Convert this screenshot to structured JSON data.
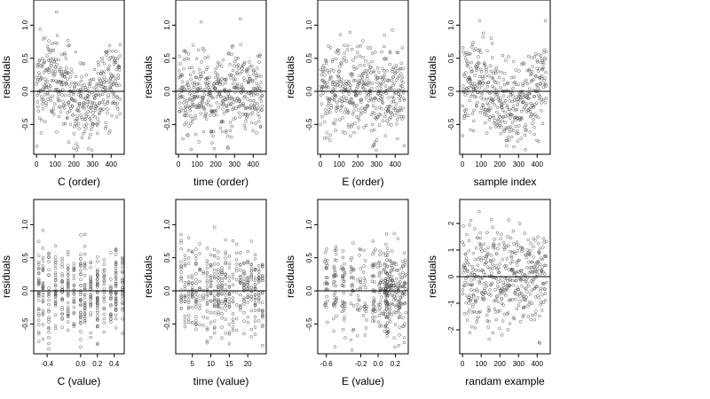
{
  "chart_data": [
    {
      "type": "scatter",
      "id": "c-order",
      "xlabel": "C (order)",
      "ylabel": "residuals",
      "xlim": [
        -15,
        470
      ],
      "ylim": [
        -0.95,
        1.38
      ],
      "xticks": [
        0,
        100,
        200,
        300,
        400
      ],
      "xtick_labels": [
        "0",
        "100",
        "200",
        "300",
        "400"
      ],
      "yticks": [
        -0.5,
        0.0,
        0.5,
        1.0
      ],
      "ytick_labels": [
        "-0.5",
        "0.0",
        "0.5",
        "1.0"
      ],
      "hline": 0,
      "n_points": 450,
      "x_kind": "index",
      "pattern": "wave"
    },
    {
      "type": "scatter",
      "id": "time-order",
      "xlabel": "time (order)",
      "ylabel": "residuals",
      "xlim": [
        -15,
        470
      ],
      "ylim": [
        -0.95,
        1.38
      ],
      "xticks": [
        0,
        100,
        200,
        300,
        400
      ],
      "xtick_labels": [
        "0",
        "100",
        "200",
        "300",
        "400"
      ],
      "yticks": [
        -0.5,
        0.0,
        0.5,
        1.0
      ],
      "ytick_labels": [
        "-0.5",
        "0.0",
        "0.5",
        "1.0"
      ],
      "hline": 0,
      "n_points": 450,
      "x_kind": "index",
      "pattern": "random"
    },
    {
      "type": "scatter",
      "id": "e-order",
      "xlabel": "E (order)",
      "ylabel": "residuals",
      "xlim": [
        -15,
        470
      ],
      "ylim": [
        -0.95,
        1.38
      ],
      "xticks": [
        0,
        100,
        200,
        300,
        400
      ],
      "xtick_labels": [
        "0",
        "100",
        "200",
        "300",
        "400"
      ],
      "yticks": [
        -0.5,
        0.0,
        0.5,
        1.0
      ],
      "ytick_labels": [
        "-0.5",
        "0.0",
        "0.5",
        "1.0"
      ],
      "hline": 0,
      "n_points": 450,
      "x_kind": "index",
      "pattern": "random"
    },
    {
      "type": "scatter",
      "id": "sample-index",
      "xlabel": "sample index",
      "ylabel": "residuals",
      "xlim": [
        -15,
        470
      ],
      "ylim": [
        -0.95,
        1.38
      ],
      "xticks": [
        0,
        100,
        200,
        300,
        400
      ],
      "xtick_labels": [
        "0",
        "100",
        "200",
        "300",
        "400"
      ],
      "yticks": [
        -0.5,
        0.0,
        0.5,
        1.0
      ],
      "ytick_labels": [
        "-0.5",
        "0.0",
        "0.5",
        "1.0"
      ],
      "hline": 0,
      "n_points": 450,
      "x_kind": "index",
      "pattern": "blocks"
    },
    {
      "type": "scatter",
      "id": "c-value",
      "xlabel": "C (value)",
      "ylabel": "residuals",
      "xlim": [
        -0.56,
        0.52
      ],
      "ylim": [
        -0.95,
        1.38
      ],
      "xticks": [
        -0.4,
        0.0,
        0.2,
        0.4
      ],
      "xtick_labels": [
        "-0.4",
        "0.0",
        "0.2",
        "0.4"
      ],
      "yticks": [
        -0.5,
        0.0,
        0.5,
        1.0
      ],
      "ytick_labels": [
        "-0.5",
        "0.0",
        "0.5",
        "1.0"
      ],
      "hline": 0,
      "n_points": 450,
      "x_kind": "discrete",
      "x_levels": [
        -0.5,
        -0.45,
        -0.38,
        -0.3,
        -0.22,
        -0.15,
        -0.08,
        0.0,
        0.05,
        0.12,
        0.2,
        0.28,
        0.36,
        0.42,
        0.5
      ],
      "pattern": "random"
    },
    {
      "type": "scatter",
      "id": "time-value",
      "xlabel": "time (value)",
      "ylabel": "residuals",
      "xlim": [
        0.5,
        25
      ],
      "ylim": [
        -0.95,
        1.38
      ],
      "xticks": [
        5,
        10,
        15,
        20
      ],
      "xtick_labels": [
        "5",
        "10",
        "15",
        "20"
      ],
      "yticks": [
        -0.5,
        0.0,
        0.5,
        1.0
      ],
      "ytick_labels": [
        "-0.5",
        "0.0",
        "0.5",
        "1.0"
      ],
      "hline": 0,
      "n_points": 450,
      "x_kind": "discrete",
      "x_levels": [
        2,
        3,
        4,
        5,
        6,
        7,
        8,
        9,
        10,
        11,
        12,
        13,
        14,
        15,
        16,
        17,
        18,
        19,
        20,
        21,
        22,
        23,
        24
      ],
      "pattern": "random"
    },
    {
      "type": "scatter",
      "id": "e-value",
      "xlabel": "E (value)",
      "ylabel": "residuals",
      "xlim": [
        -0.7,
        0.35
      ],
      "ylim": [
        -0.95,
        1.38
      ],
      "xticks": [
        -0.6,
        -0.2,
        0.0,
        0.2
      ],
      "xtick_labels": [
        "-0.6",
        "-0.2",
        "0.0",
        "0.2"
      ],
      "yticks": [
        -0.5,
        0.0,
        0.5,
        1.0
      ],
      "ytick_labels": [
        "-0.5",
        "0.0",
        "0.5",
        "1.0"
      ],
      "hline": 0,
      "n_points": 450,
      "x_kind": "clustered",
      "x_levels": [
        -0.6,
        -0.5,
        -0.4,
        -0.3,
        -0.22,
        -0.15,
        -0.05,
        0.02,
        0.08,
        0.1,
        0.12,
        0.15,
        0.2,
        0.25,
        0.3
      ],
      "pattern": "random"
    },
    {
      "type": "scatter",
      "id": "random-example",
      "xlabel": "randam example",
      "ylabel": "residuals",
      "xlim": [
        -15,
        470
      ],
      "ylim": [
        -2.9,
        2.9
      ],
      "xticks": [
        0,
        100,
        200,
        300,
        400
      ],
      "xtick_labels": [
        "0",
        "100",
        "200",
        "300",
        "400"
      ],
      "yticks": [
        -2,
        -1,
        0,
        1,
        2
      ],
      "ytick_labels": [
        "-2",
        "-1",
        "0",
        "1",
        "2"
      ],
      "hline": 0,
      "n_points": 450,
      "x_kind": "index",
      "pattern": "normal"
    }
  ]
}
